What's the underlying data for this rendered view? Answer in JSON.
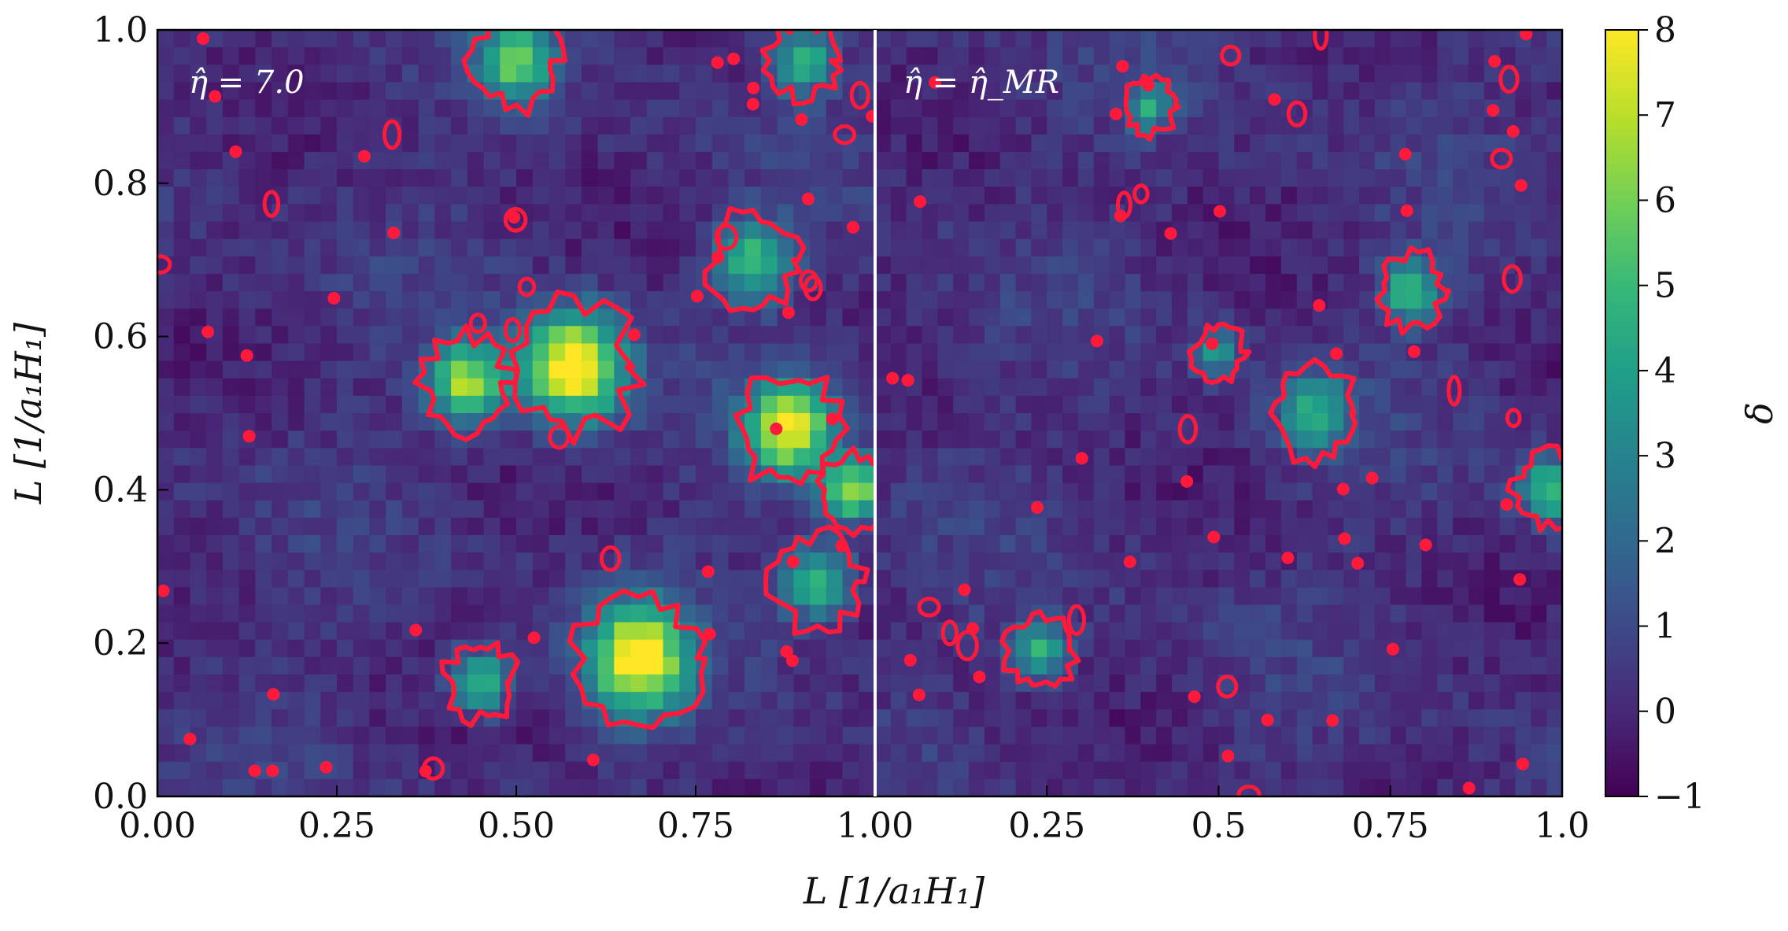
{
  "chart_data": [
    {
      "type": "heatmap",
      "panel": "left",
      "annotation": "η̂ = 7.0",
      "xlabel": "L [1/a₁H₁]",
      "ylabel": "L [1/a₁H₁]",
      "xlim": [
        0,
        1
      ],
      "ylim": [
        0,
        1
      ],
      "xticks": [
        "0.00",
        "0.25",
        "0.50",
        "0.75",
        "1.00"
      ],
      "yticks": [
        "0.0",
        "0.2",
        "0.4",
        "0.6",
        "0.8",
        "1.0"
      ],
      "contour_color": "#ff1a3c",
      "hotspots": [
        {
          "x": 0.58,
          "y": 0.56,
          "r": 0.07,
          "delta": 8
        },
        {
          "x": 0.67,
          "y": 0.18,
          "r": 0.07,
          "delta": 7.5
        },
        {
          "x": 0.88,
          "y": 0.48,
          "r": 0.06,
          "delta": 7
        },
        {
          "x": 0.43,
          "y": 0.54,
          "r": 0.05,
          "delta": 6
        },
        {
          "x": 0.97,
          "y": 0.4,
          "r": 0.04,
          "delta": 6
        },
        {
          "x": 0.5,
          "y": 0.96,
          "r": 0.05,
          "delta": 5
        },
        {
          "x": 0.83,
          "y": 0.7,
          "r": 0.05,
          "delta": 4.5
        },
        {
          "x": 0.45,
          "y": 0.15,
          "r": 0.04,
          "delta": 4.5
        },
        {
          "x": 0.92,
          "y": 0.28,
          "r": 0.05,
          "delta": 4
        },
        {
          "x": 0.9,
          "y": 0.96,
          "r": 0.04,
          "delta": 4
        }
      ]
    },
    {
      "type": "heatmap",
      "panel": "right",
      "annotation": "η̂ = η̂_MR",
      "xlabel": "",
      "ylabel": "",
      "xlim": [
        0,
        1
      ],
      "ylim": [
        0,
        1
      ],
      "xticks": [
        "0.25",
        "0.5",
        "0.75",
        "1.0"
      ],
      "yticks": [],
      "contour_color": "#ff1a3c",
      "hotspots": [
        {
          "x": 0.78,
          "y": 0.66,
          "r": 0.04,
          "delta": 4.5
        },
        {
          "x": 0.64,
          "y": 0.5,
          "r": 0.05,
          "delta": 3.5
        },
        {
          "x": 0.98,
          "y": 0.4,
          "r": 0.04,
          "delta": 4.5
        },
        {
          "x": 0.24,
          "y": 0.19,
          "r": 0.04,
          "delta": 4
        },
        {
          "x": 0.4,
          "y": 0.9,
          "r": 0.03,
          "delta": 3.5
        },
        {
          "x": 0.5,
          "y": 0.58,
          "r": 0.03,
          "delta": 3
        }
      ]
    }
  ],
  "colorbar": {
    "label": "δ",
    "min": -1,
    "max": 8,
    "ticks": [
      "−1",
      "0",
      "1",
      "2",
      "3",
      "4",
      "5",
      "6",
      "7",
      "8"
    ],
    "colormap": "viridis",
    "colors": [
      "#440154",
      "#482878",
      "#3e4989",
      "#31688e",
      "#26828e",
      "#1f9e89",
      "#35b779",
      "#6ece58",
      "#b5de2b",
      "#fde725"
    ]
  }
}
